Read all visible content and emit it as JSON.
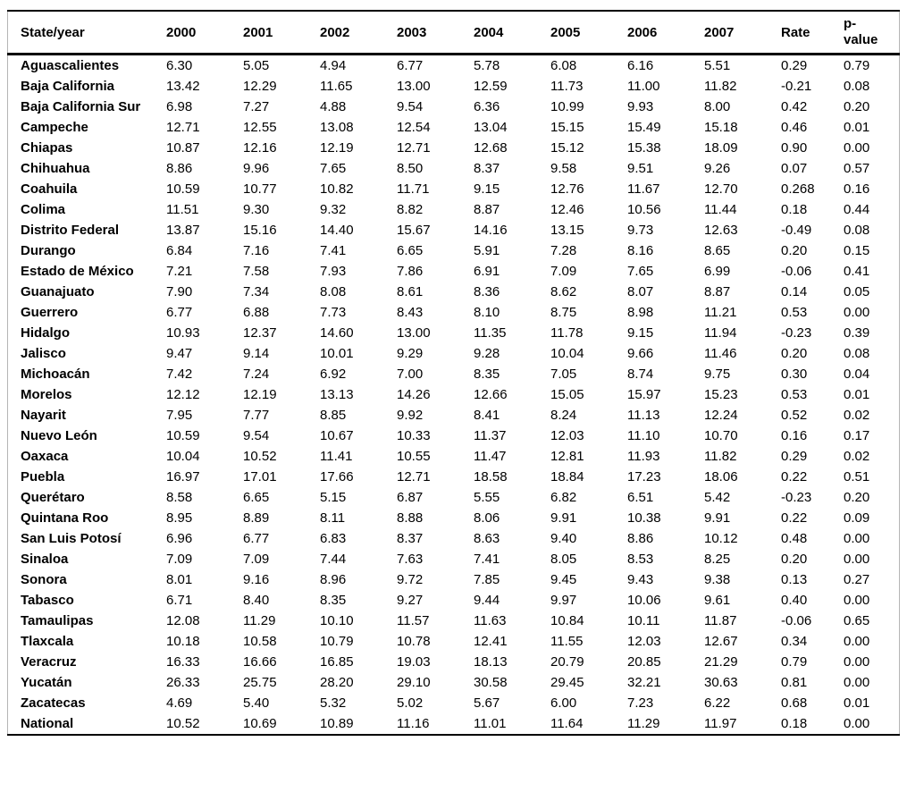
{
  "table": {
    "columns": [
      "State/year",
      "2000",
      "2001",
      "2002",
      "2003",
      "2004",
      "2005",
      "2006",
      "2007",
      "Rate",
      "p-value"
    ],
    "rows": [
      {
        "state": "Aguascalientes",
        "values": [
          "6.30",
          "5.05",
          "4.94",
          "6.77",
          "5.78",
          "6.08",
          "6.16",
          "5.51",
          "0.29",
          "0.79"
        ]
      },
      {
        "state": "Baja California",
        "values": [
          "13.42",
          "12.29",
          "11.65",
          "13.00",
          "12.59",
          "11.73",
          "11.00",
          "11.82",
          "-0.21",
          "0.08"
        ]
      },
      {
        "state": "Baja California Sur",
        "values": [
          "6.98",
          "7.27",
          "4.88",
          "9.54",
          "6.36",
          "10.99",
          "9.93",
          "8.00",
          "0.42",
          "0.20"
        ]
      },
      {
        "state": "Campeche",
        "values": [
          "12.71",
          "12.55",
          "13.08",
          "12.54",
          "13.04",
          "15.15",
          "15.49",
          "15.18",
          "0.46",
          "0.01"
        ]
      },
      {
        "state": "Chiapas",
        "values": [
          "10.87",
          "12.16",
          "12.19",
          "12.71",
          "12.68",
          "15.12",
          "15.38",
          "18.09",
          "0.90",
          "0.00"
        ]
      },
      {
        "state": "Chihuahua",
        "values": [
          "8.86",
          "9.96",
          "7.65",
          "8.50",
          "8.37",
          "9.58",
          "9.51",
          "9.26",
          "0.07",
          "0.57"
        ]
      },
      {
        "state": "Coahuila",
        "values": [
          "10.59",
          "10.77",
          "10.82",
          "11.71",
          "9.15",
          "12.76",
          "11.67",
          "12.70",
          "0.268",
          "0.16"
        ]
      },
      {
        "state": "Colima",
        "values": [
          "11.51",
          "9.30",
          "9.32",
          "8.82",
          "8.87",
          "12.46",
          "10.56",
          "11.44",
          "0.18",
          "0.44"
        ]
      },
      {
        "state": "Distrito Federal",
        "values": [
          "13.87",
          "15.16",
          "14.40",
          "15.67",
          "14.16",
          "13.15",
          "9.73",
          "12.63",
          "-0.49",
          "0.08"
        ]
      },
      {
        "state": "Durango",
        "values": [
          "6.84",
          "7.16",
          "7.41",
          "6.65",
          "5.91",
          "7.28",
          "8.16",
          "8.65",
          "0.20",
          "0.15"
        ]
      },
      {
        "state": "Estado de México",
        "values": [
          "7.21",
          "7.58",
          "7.93",
          "7.86",
          "6.91",
          "7.09",
          "7.65",
          "6.99",
          "-0.06",
          "0.41"
        ]
      },
      {
        "state": "Guanajuato",
        "values": [
          "7.90",
          "7.34",
          "8.08",
          "8.61",
          "8.36",
          "8.62",
          "8.07",
          "8.87",
          "0.14",
          "0.05"
        ]
      },
      {
        "state": "Guerrero",
        "values": [
          "6.77",
          "6.88",
          "7.73",
          "8.43",
          "8.10",
          "8.75",
          "8.98",
          "11.21",
          "0.53",
          "0.00"
        ]
      },
      {
        "state": "Hidalgo",
        "values": [
          "10.93",
          "12.37",
          "14.60",
          "13.00",
          "11.35",
          "11.78",
          "9.15",
          "11.94",
          "-0.23",
          "0.39"
        ]
      },
      {
        "state": "Jalisco",
        "values": [
          "9.47",
          "9.14",
          "10.01",
          "9.29",
          "9.28",
          "10.04",
          "9.66",
          "11.46",
          "0.20",
          "0.08"
        ]
      },
      {
        "state": "Michoacán",
        "values": [
          "7.42",
          "7.24",
          "6.92",
          "7.00",
          "8.35",
          "7.05",
          "8.74",
          "9.75",
          "0.30",
          "0.04"
        ]
      },
      {
        "state": "Morelos",
        "values": [
          "12.12",
          "12.19",
          "13.13",
          "14.26",
          "12.66",
          "15.05",
          "15.97",
          "15.23",
          "0.53",
          "0.01"
        ]
      },
      {
        "state": "Nayarit",
        "values": [
          "7.95",
          "7.77",
          "8.85",
          "9.92",
          "8.41",
          "8.24",
          "11.13",
          "12.24",
          "0.52",
          "0.02"
        ]
      },
      {
        "state": "Nuevo León",
        "values": [
          "10.59",
          "9.54",
          "10.67",
          "10.33",
          "11.37",
          "12.03",
          "11.10",
          "10.70",
          "0.16",
          "0.17"
        ]
      },
      {
        "state": "Oaxaca",
        "values": [
          "10.04",
          "10.52",
          "11.41",
          "10.55",
          "11.47",
          "12.81",
          "11.93",
          "11.82",
          "0.29",
          "0.02"
        ]
      },
      {
        "state": "Puebla",
        "values": [
          "16.97",
          "17.01",
          "17.66",
          "12.71",
          "18.58",
          "18.84",
          "17.23",
          "18.06",
          "0.22",
          "0.51"
        ]
      },
      {
        "state": "Querétaro",
        "values": [
          "8.58",
          "6.65",
          "5.15",
          "6.87",
          "5.55",
          "6.82",
          "6.51",
          "5.42",
          "-0.23",
          "0.20"
        ]
      },
      {
        "state": "Quintana Roo",
        "values": [
          "8.95",
          "8.89",
          "8.11",
          "8.88",
          "8.06",
          "9.91",
          "10.38",
          "9.91",
          "0.22",
          "0.09"
        ]
      },
      {
        "state": "San Luis Potosí",
        "values": [
          "6.96",
          "6.77",
          "6.83",
          "8.37",
          "8.63",
          "9.40",
          "8.86",
          "10.12",
          "0.48",
          "0.00"
        ]
      },
      {
        "state": "Sinaloa",
        "values": [
          "7.09",
          "7.09",
          "7.44",
          "7.63",
          "7.41",
          "8.05",
          "8.53",
          "8.25",
          "0.20",
          "0.00"
        ]
      },
      {
        "state": "Sonora",
        "values": [
          "8.01",
          "9.16",
          "8.96",
          "9.72",
          "7.85",
          "9.45",
          "9.43",
          "9.38",
          "0.13",
          "0.27"
        ]
      },
      {
        "state": "Tabasco",
        "values": [
          "6.71",
          "8.40",
          "8.35",
          "9.27",
          "9.44",
          "9.97",
          "10.06",
          "9.61",
          "0.40",
          "0.00"
        ]
      },
      {
        "state": "Tamaulipas",
        "values": [
          "12.08",
          "11.29",
          "10.10",
          "11.57",
          "11.63",
          "10.84",
          "10.11",
          "11.87",
          "-0.06",
          "0.65"
        ]
      },
      {
        "state": "Tlaxcala",
        "values": [
          "10.18",
          "10.58",
          "10.79",
          "10.78",
          "12.41",
          "11.55",
          "12.03",
          "12.67",
          "0.34",
          "0.00"
        ]
      },
      {
        "state": "Veracruz",
        "values": [
          "16.33",
          "16.66",
          "16.85",
          "19.03",
          "18.13",
          "20.79",
          "20.85",
          "21.29",
          "0.79",
          "0.00"
        ]
      },
      {
        "state": "Yucatán",
        "values": [
          "26.33",
          "25.75",
          "28.20",
          "29.10",
          "30.58",
          "29.45",
          "32.21",
          "30.63",
          "0.81",
          "0.00"
        ]
      },
      {
        "state": "Zacatecas",
        "values": [
          "4.69",
          "5.40",
          "5.32",
          "5.02",
          "5.67",
          "6.00",
          "7.23",
          "6.22",
          "0.68",
          "0.01"
        ]
      },
      {
        "state": "National",
        "values": [
          "10.52",
          "10.69",
          "10.89",
          "11.16",
          "11.01",
          "11.64",
          "11.29",
          "11.97",
          "0.18",
          "0.00"
        ]
      }
    ]
  },
  "colors": {
    "text": "#000000",
    "background": "#ffffff",
    "rule_strong": "#000000",
    "rule_side": "#b5b5b5"
  }
}
